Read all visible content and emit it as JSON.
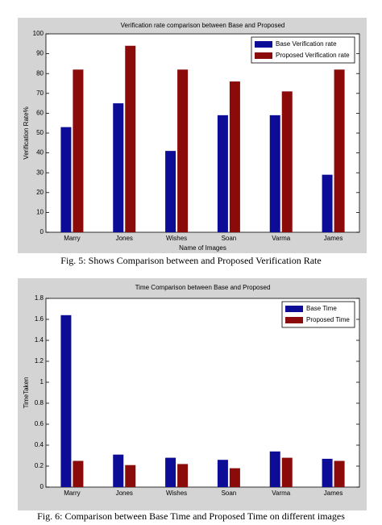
{
  "chart_data": [
    {
      "type": "bar",
      "title": "Verification rate comparison between Base and Proposed",
      "x_label": "Name of Images",
      "y_label": "Verification Rate%",
      "categories": [
        "Marry",
        "Jones",
        "Wishes",
        "Soan",
        "Varma",
        "James"
      ],
      "series": [
        {
          "name": "Base Verification rate",
          "color": "#0c0c96",
          "values": [
            53,
            65,
            41,
            59,
            59,
            29
          ]
        },
        {
          "name": "Proposed Verification rate",
          "color": "#8b0b0b",
          "values": [
            82,
            94,
            82,
            76,
            71,
            82
          ]
        }
      ],
      "ylim": [
        0,
        100
      ],
      "yticks": [
        0,
        10,
        20,
        30,
        40,
        50,
        60,
        70,
        80,
        90,
        100
      ],
      "legend": "top-right",
      "caption": "Fig. 5: Shows Comparison between and Proposed Verification Rate"
    },
    {
      "type": "bar",
      "title": "Time Comparison between Base and Proposed",
      "y_label": "TimeTaken",
      "categories": [
        "Marry",
        "Jones",
        "Wishes",
        "Soan",
        "Varma",
        "James"
      ],
      "series": [
        {
          "name": "Base Time",
          "color": "#0c0c96",
          "values": [
            1.64,
            0.31,
            0.28,
            0.26,
            0.34,
            0.27
          ]
        },
        {
          "name": "Proposed Time",
          "color": "#8b0b0b",
          "values": [
            0.25,
            0.21,
            0.22,
            0.18,
            0.28,
            0.25
          ]
        }
      ],
      "ylim": [
        0,
        1.8
      ],
      "yticks": [
        0,
        0.2,
        0.4,
        0.6,
        0.8,
        1,
        1.2,
        1.4,
        1.6,
        1.8
      ],
      "legend": "top-right",
      "caption": "Fig. 6: Comparison between Base Time and Proposed Time on different images"
    }
  ]
}
